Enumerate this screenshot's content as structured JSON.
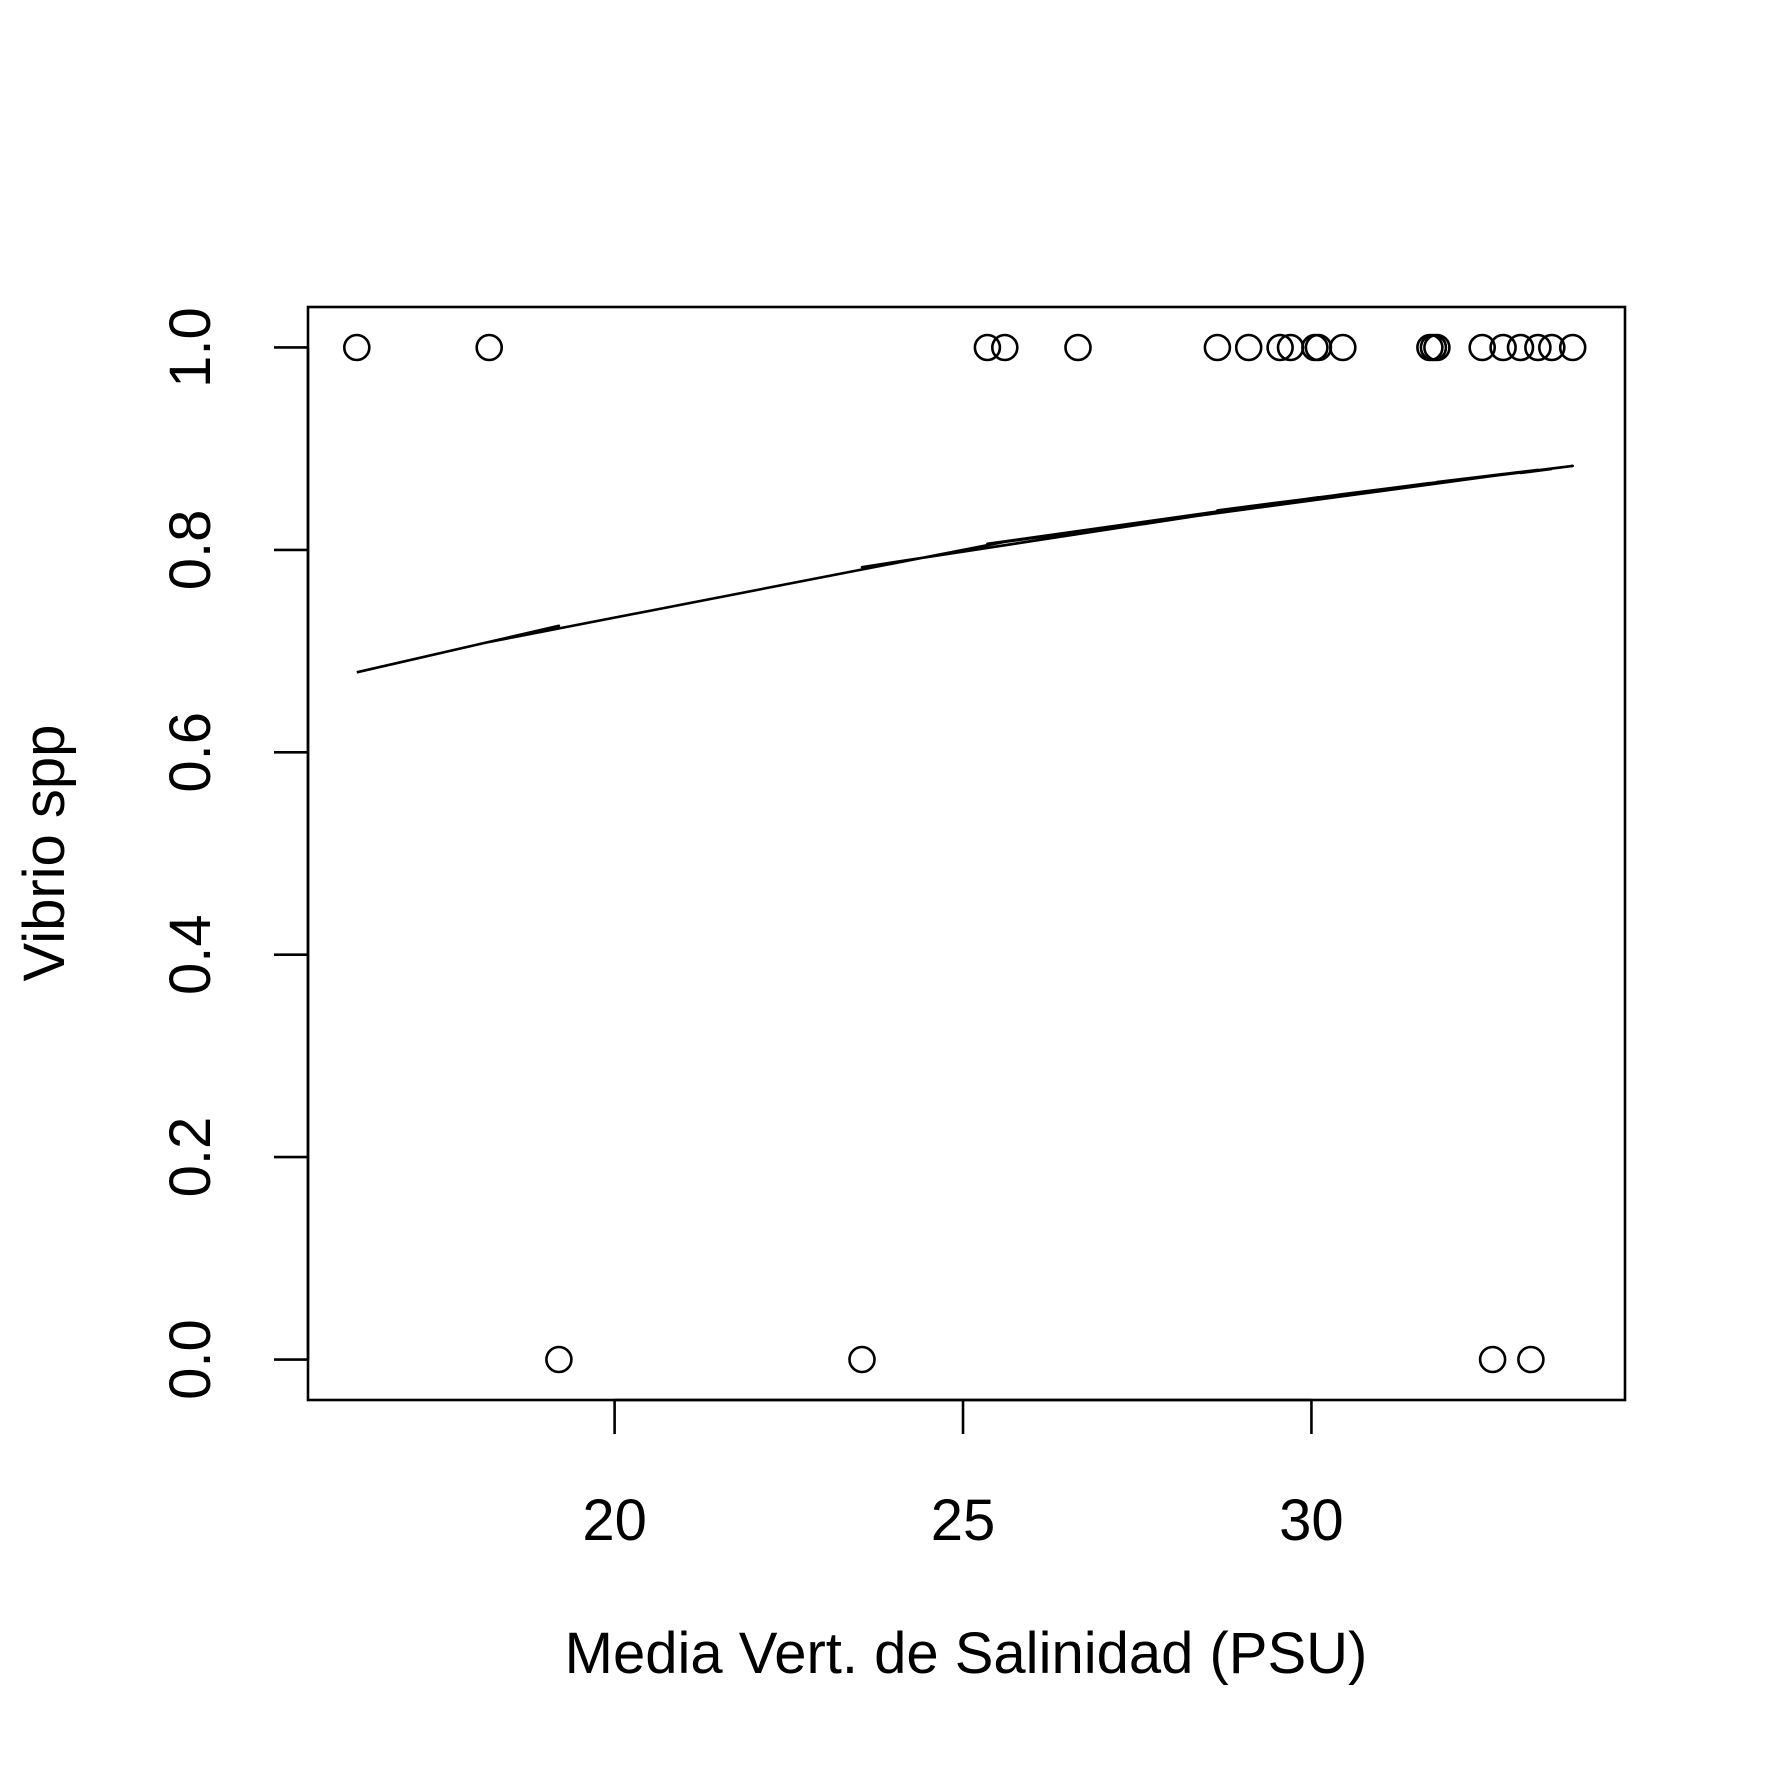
{
  "chart_data": {
    "type": "scatter",
    "title": "",
    "xlabel": "Media Vert. de Salinidad (PSU)",
    "ylabel": "Vibrio spp",
    "xlim": [
      15.6,
      34.5
    ],
    "ylim": [
      -0.04,
      1.04
    ],
    "x_ticks": [
      20,
      25,
      30
    ],
    "x_tick_labels": [
      "20",
      "25",
      "30"
    ],
    "y_ticks": [
      0.0,
      0.2,
      0.4,
      0.6,
      0.8,
      1.0
    ],
    "y_tick_labels": [
      "0.0",
      "0.2",
      "0.4",
      "0.6",
      "0.8",
      "1.0"
    ],
    "grid": false,
    "points": {
      "marker": "open-circle",
      "x": [
        16.3,
        18.2,
        19.2,
        23.55,
        25.35,
        25.6,
        26.65,
        28.65,
        29.1,
        29.55,
        29.7,
        30.05,
        30.1,
        30.45,
        31.7,
        31.75,
        31.8,
        32.45,
        32.6,
        32.75,
        33.0,
        33.15,
        33.25,
        33.45,
        33.75
      ],
      "y": [
        1,
        1,
        0,
        0,
        1,
        1,
        1,
        1,
        1,
        1,
        1,
        1,
        1,
        1,
        1,
        1,
        1,
        1,
        0,
        1,
        1,
        0,
        1,
        1,
        1
      ]
    },
    "fitted_line": {
      "x": [
        16.3,
        18.2,
        19.2,
        23.55,
        25.35,
        25.6,
        26.65,
        28.65,
        29.1,
        29.55,
        29.7,
        30.05,
        30.1,
        30.45,
        31.7,
        31.75,
        31.8,
        32.45,
        32.6,
        32.75,
        33.0,
        33.15,
        33.25,
        33.45,
        33.75
      ],
      "y": [
        0.679,
        0.709,
        0.725,
        0.783,
        0.806,
        0.808,
        0.818,
        0.839,
        0.842,
        0.847,
        0.848,
        0.851,
        0.852,
        0.855,
        0.866,
        0.866,
        0.867,
        0.872,
        0.873,
        0.875,
        0.876,
        0.878,
        0.879,
        0.88,
        0.883
      ],
      "order": [
        0,
        2,
        1,
        5,
        18,
        10,
        3,
        12,
        4,
        6,
        14,
        7,
        9,
        17,
        11,
        24,
        15,
        21,
        8,
        13,
        19,
        16,
        22,
        20,
        23
      ]
    }
  }
}
